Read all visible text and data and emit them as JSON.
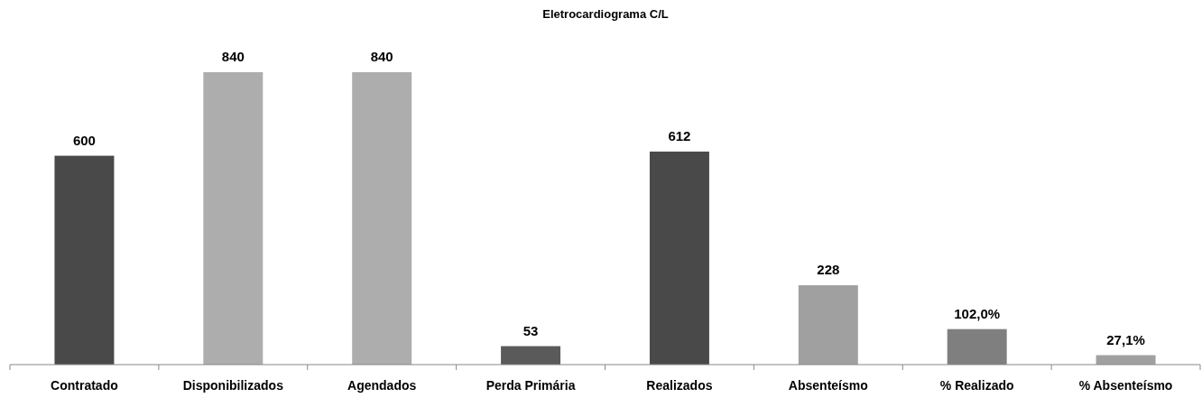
{
  "chart_data": {
    "type": "bar",
    "title": "Eletrocardiograma C/L",
    "categories": [
      "Contratado",
      "Disponibilizados",
      "Agendados",
      "Perda Primária",
      "Realizados",
      "Absenteísmo",
      "% Realizado",
      "% Absenteísmo"
    ],
    "values": [
      600,
      840,
      840,
      53,
      612,
      228,
      102.0,
      27.1
    ],
    "value_labels": [
      "600",
      "840",
      "840",
      "53",
      "612",
      "228",
      "102,0%",
      "27,1%"
    ],
    "colors": [
      "#494949",
      "#adadad",
      "#adadad",
      "#5a5a5a",
      "#494949",
      "#a0a0a0",
      "#7f7f7f",
      "#a0a0a0"
    ]
  }
}
